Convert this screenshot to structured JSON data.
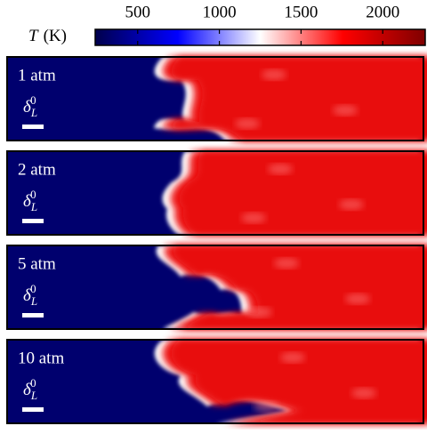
{
  "chart_data": {
    "type": "colormap-panels",
    "colorbar": {
      "label_symbol": "T",
      "label_unit": "(K)",
      "clim": [
        240,
        2260
      ],
      "ticks": [
        500,
        1000,
        1500,
        2000
      ],
      "colors": [
        "#00004c",
        "#0000ff",
        "#ffffff",
        "#ff0000",
        "#7f0000"
      ]
    },
    "panels": [
      {
        "label": "1 atm"
      },
      {
        "label": "2 atm"
      },
      {
        "label": "5 atm"
      },
      {
        "label": "10 atm"
      }
    ],
    "scale_label": {
      "symbol": "δ",
      "sub": "L",
      "sup": "0"
    }
  }
}
